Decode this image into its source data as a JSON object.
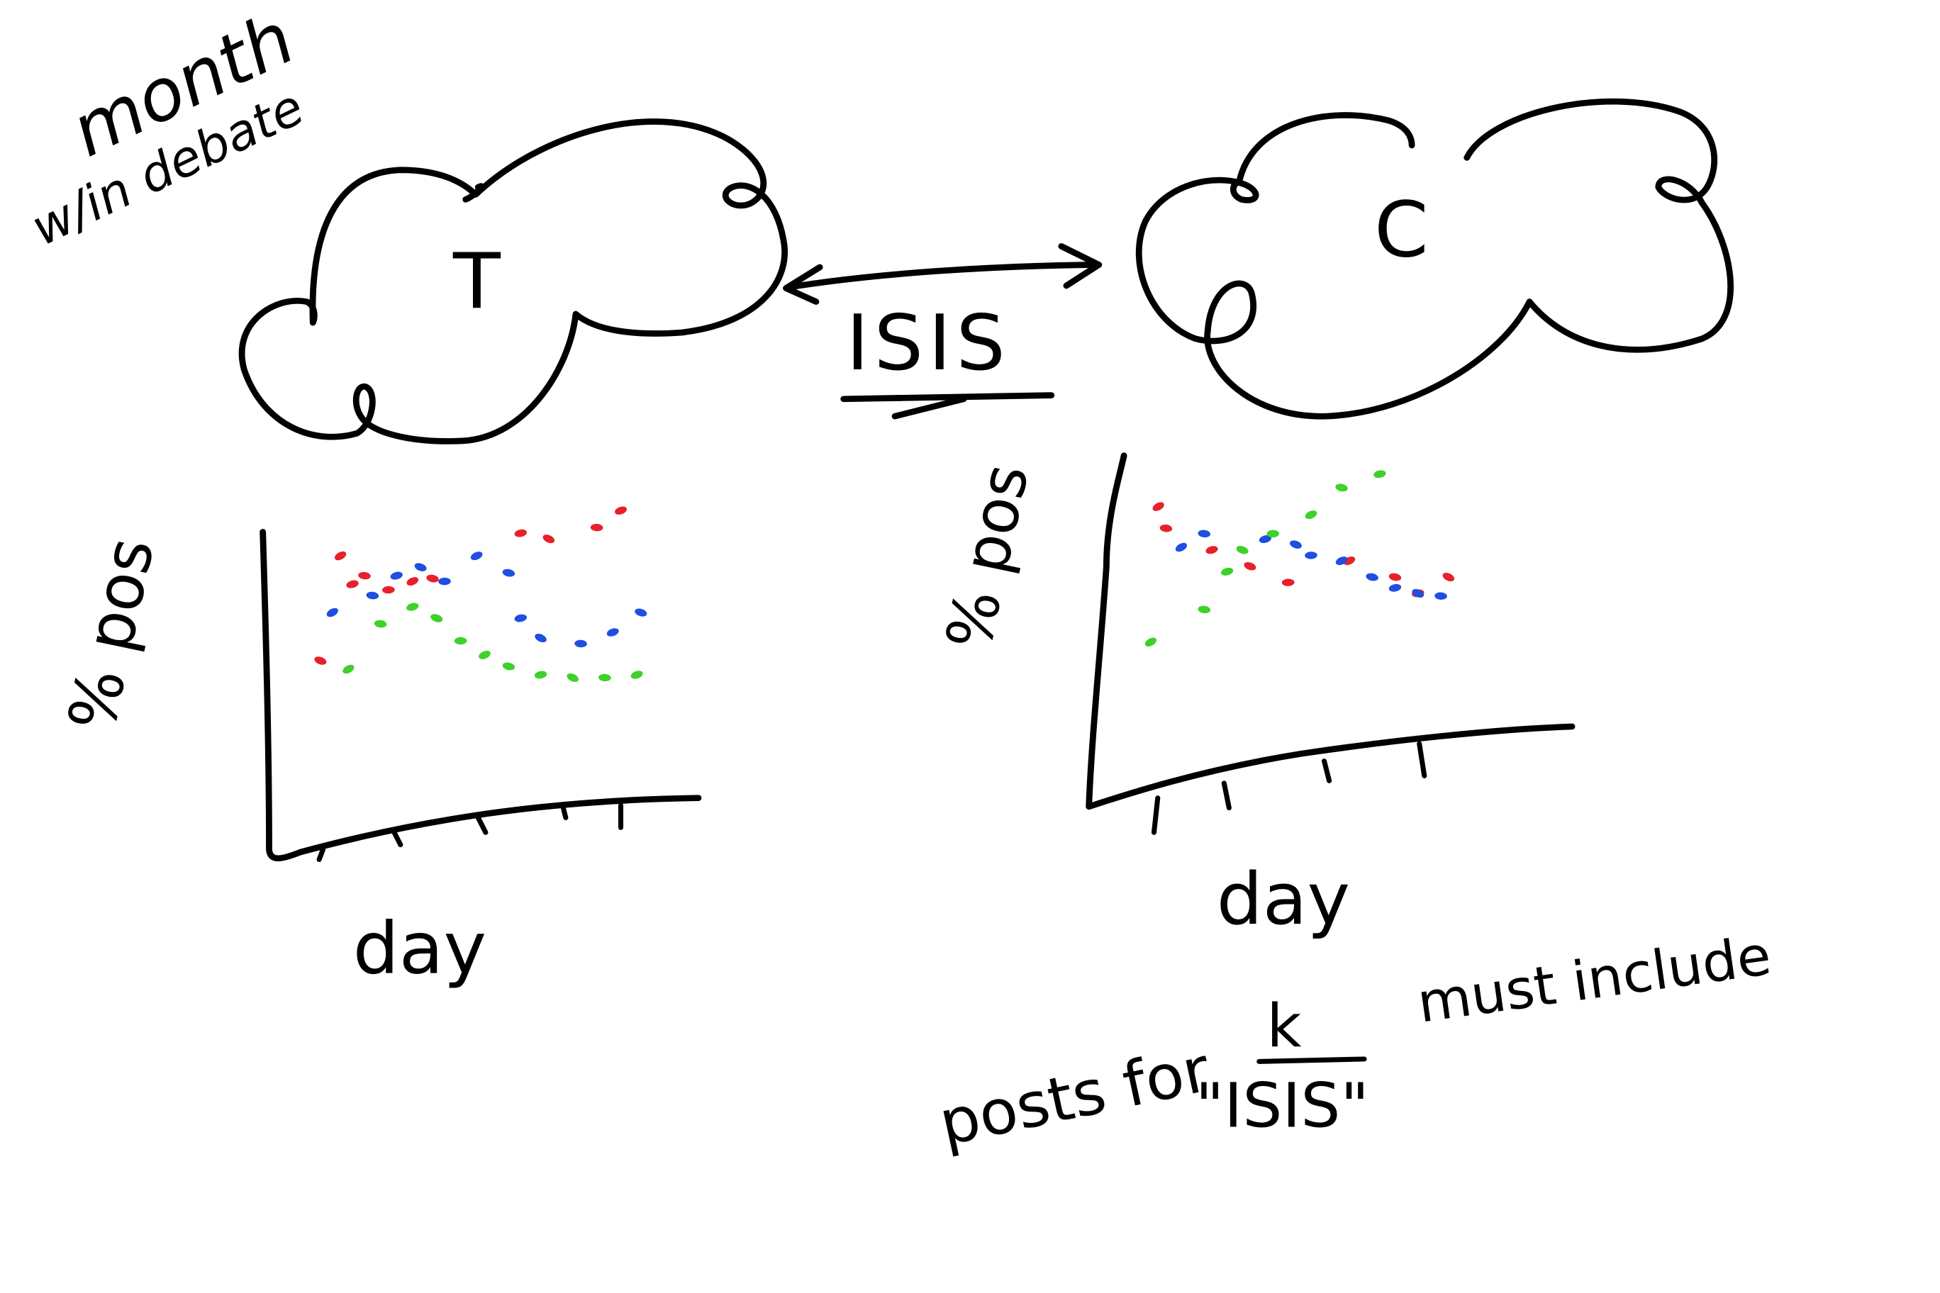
{
  "colors": {
    "ink": "#000000",
    "red": "#e8202a",
    "blue": "#1f4fe0",
    "green": "#3ed12a",
    "background": "#ffffff"
  },
  "annotations": {
    "month": "month",
    "within_debate": "w/in debate",
    "left_cloud_letter": "T",
    "right_cloud_letter": "C",
    "link_label": "ISIS",
    "note_line1": "posts for",
    "note_k": "k",
    "note_line1b": "must include",
    "note_line2": "\"ISIS\""
  },
  "chart_data": [
    {
      "type": "scatter",
      "title": "",
      "xlabel": "day",
      "ylabel": "% pos",
      "grid": false,
      "series": [
        {
          "color": "red",
          "values": [
            [
              0.1,
              0.82
            ],
            [
              0.16,
              0.75
            ],
            [
              0.13,
              0.72
            ],
            [
              0.05,
              0.45
            ],
            [
              0.22,
              0.7
            ],
            [
              0.28,
              0.73
            ],
            [
              0.33,
              0.74
            ],
            [
              0.55,
              0.9
            ],
            [
              0.62,
              0.88
            ],
            [
              0.74,
              0.92
            ],
            [
              0.8,
              0.98
            ]
          ]
        },
        {
          "color": "blue",
          "values": [
            [
              0.08,
              0.62
            ],
            [
              0.18,
              0.68
            ],
            [
              0.24,
              0.75
            ],
            [
              0.3,
              0.78
            ],
            [
              0.36,
              0.73
            ],
            [
              0.44,
              0.82
            ],
            [
              0.52,
              0.76
            ],
            [
              0.55,
              0.6
            ],
            [
              0.6,
              0.53
            ],
            [
              0.7,
              0.51
            ],
            [
              0.78,
              0.55
            ],
            [
              0.85,
              0.62
            ]
          ]
        },
        {
          "color": "green",
          "values": [
            [
              0.12,
              0.42
            ],
            [
              0.2,
              0.58
            ],
            [
              0.28,
              0.64
            ],
            [
              0.34,
              0.6
            ],
            [
              0.4,
              0.52
            ],
            [
              0.46,
              0.47
            ],
            [
              0.52,
              0.43
            ],
            [
              0.6,
              0.4
            ],
            [
              0.68,
              0.39
            ],
            [
              0.76,
              0.39
            ],
            [
              0.84,
              0.4
            ]
          ]
        }
      ]
    },
    {
      "type": "scatter",
      "title": "",
      "xlabel": "day",
      "ylabel": "% pos",
      "grid": false,
      "series": [
        {
          "color": "red",
          "values": [
            [
              0.1,
              0.88
            ],
            [
              0.12,
              0.8
            ],
            [
              0.24,
              0.72
            ],
            [
              0.34,
              0.66
            ],
            [
              0.44,
              0.6
            ],
            [
              0.6,
              0.68
            ],
            [
              0.72,
              0.62
            ],
            [
              0.78,
              0.56
            ],
            [
              0.86,
              0.62
            ]
          ]
        },
        {
          "color": "blue",
          "values": [
            [
              0.16,
              0.73
            ],
            [
              0.22,
              0.78
            ],
            [
              0.38,
              0.76
            ],
            [
              0.46,
              0.74
            ],
            [
              0.5,
              0.7
            ],
            [
              0.58,
              0.68
            ],
            [
              0.66,
              0.62
            ],
            [
              0.72,
              0.58
            ],
            [
              0.78,
              0.56
            ],
            [
              0.84,
              0.55
            ]
          ]
        },
        {
          "color": "green",
          "values": [
            [
              0.08,
              0.38
            ],
            [
              0.22,
              0.5
            ],
            [
              0.28,
              0.64
            ],
            [
              0.32,
              0.72
            ],
            [
              0.4,
              0.78
            ],
            [
              0.5,
              0.85
            ],
            [
              0.58,
              0.95
            ],
            [
              0.68,
              1.0
            ]
          ]
        }
      ]
    }
  ]
}
